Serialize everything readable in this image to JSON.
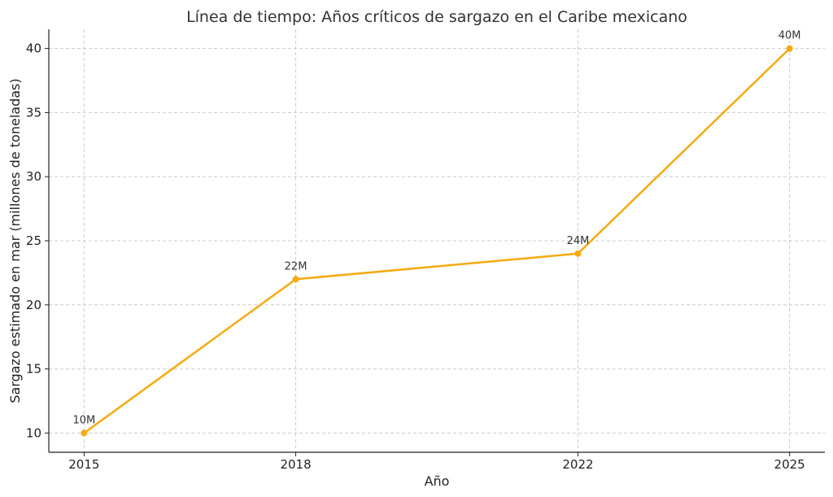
{
  "chart_data": {
    "type": "line",
    "title": "Línea de tiempo: Años críticos de sargazo en el Caribe mexicano",
    "xlabel": "Año",
    "ylabel": "Sargazo estimado en mar (millones de toneladas)",
    "x": [
      2015,
      2018,
      2022,
      2025
    ],
    "series": [
      {
        "values": [
          10,
          22,
          24,
          40
        ],
        "color": "#F5AA0F"
      }
    ],
    "data_labels": [
      "10M",
      "22M",
      "24M",
      "40M"
    ],
    "xticks": [
      "2015",
      "2018",
      "2022",
      "2025"
    ],
    "yticks": [
      10,
      15,
      20,
      25,
      30,
      35,
      40
    ],
    "xlim": [
      2014.5,
      2025.5
    ],
    "ylim": [
      8.5,
      41.5
    ],
    "grid": true,
    "colors": {
      "line": "#F5AA0F",
      "grid": "#cccccc",
      "axis": "#222222"
    }
  }
}
